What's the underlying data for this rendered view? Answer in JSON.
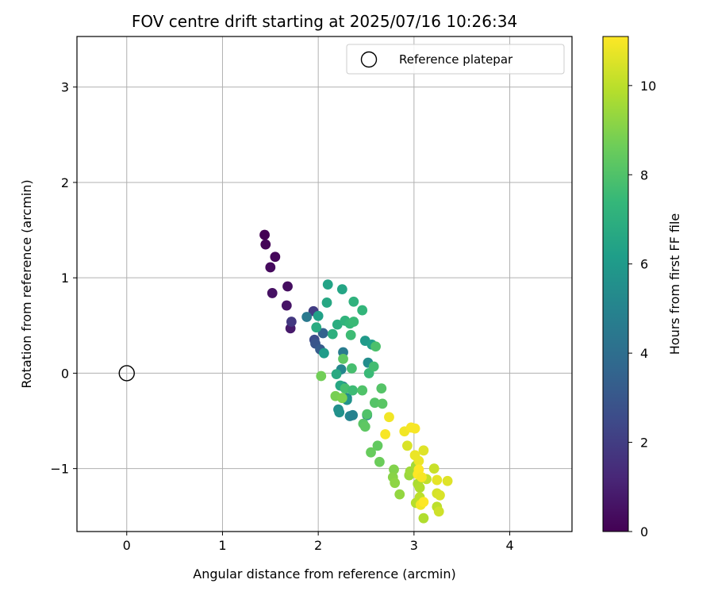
{
  "chart_data": {
    "type": "scatter",
    "title": "FOV centre drift starting at 2025/07/16 10:26:34",
    "xlabel": "Angular distance from reference (arcmin)",
    "ylabel": "Rotation from reference (arcmin)",
    "xlim": [
      -0.52,
      4.65
    ],
    "ylim": [
      -1.66,
      3.53
    ],
    "xticks": [
      0,
      1,
      2,
      3,
      4
    ],
    "yticks": [
      -1,
      0,
      1,
      2,
      3
    ],
    "xtick_labels": [
      "0",
      "1",
      "2",
      "3",
      "4"
    ],
    "ytick_labels": [
      "−1",
      "0",
      "1",
      "2",
      "3"
    ],
    "grid": true,
    "legend": {
      "placement": "top-right",
      "label": "Reference platepar"
    },
    "reference_point": {
      "x": 0,
      "y": 0
    },
    "colorbar": {
      "label": "Hours from first FF file",
      "range": [
        0,
        11.1
      ],
      "ticks": [
        0,
        2,
        4,
        6,
        8,
        10
      ],
      "tick_labels": [
        "0",
        "2",
        "4",
        "6",
        "8",
        "10"
      ],
      "colormap": "viridis"
    },
    "points": [
      {
        "x": 1.44,
        "y": 1.45,
        "h": 0.0
      },
      {
        "x": 1.45,
        "y": 1.35,
        "h": 0.1
      },
      {
        "x": 1.55,
        "y": 1.22,
        "h": 0.2
      },
      {
        "x": 1.5,
        "y": 1.11,
        "h": 0.3
      },
      {
        "x": 1.68,
        "y": 0.91,
        "h": 0.4
      },
      {
        "x": 1.52,
        "y": 0.84,
        "h": 0.5
      },
      {
        "x": 1.67,
        "y": 0.71,
        "h": 0.6
      },
      {
        "x": 1.71,
        "y": 0.47,
        "h": 0.8
      },
      {
        "x": 1.72,
        "y": 0.54,
        "h": 1.8
      },
      {
        "x": 1.95,
        "y": 0.65,
        "h": 2.0
      },
      {
        "x": 1.96,
        "y": 0.35,
        "h": 2.6
      },
      {
        "x": 1.97,
        "y": 0.31,
        "h": 2.9
      },
      {
        "x": 2.02,
        "y": 0.25,
        "h": 3.2
      },
      {
        "x": 2.05,
        "y": 0.42,
        "h": 3.5
      },
      {
        "x": 1.88,
        "y": 0.59,
        "h": 4.5
      },
      {
        "x": 2.26,
        "y": 0.22,
        "h": 4.6
      },
      {
        "x": 2.26,
        "y": -0.14,
        "h": 4.7
      },
      {
        "x": 2.33,
        "y": -0.45,
        "h": 5.0
      },
      {
        "x": 2.36,
        "y": -0.44,
        "h": 4.9
      },
      {
        "x": 2.24,
        "y": 0.04,
        "h": 5.1
      },
      {
        "x": 2.3,
        "y": -0.26,
        "h": 5.2
      },
      {
        "x": 2.51,
        "y": -0.44,
        "h": 5.0
      },
      {
        "x": 2.21,
        "y": -0.38,
        "h": 5.5
      },
      {
        "x": 2.22,
        "y": -0.41,
        "h": 5.6
      },
      {
        "x": 2.3,
        "y": -0.28,
        "h": 5.7
      },
      {
        "x": 2.52,
        "y": 0.11,
        "h": 5.4
      },
      {
        "x": 2.49,
        "y": 0.34,
        "h": 6.0
      },
      {
        "x": 2.56,
        "y": 0.3,
        "h": 6.2
      },
      {
        "x": 2.06,
        "y": 0.21,
        "h": 6.1
      },
      {
        "x": 2.1,
        "y": 0.93,
        "h": 6.4
      },
      {
        "x": 2.25,
        "y": 0.88,
        "h": 6.5
      },
      {
        "x": 2.09,
        "y": 0.74,
        "h": 6.6
      },
      {
        "x": 2.0,
        "y": 0.6,
        "h": 6.3
      },
      {
        "x": 1.98,
        "y": 0.48,
        "h": 6.8
      },
      {
        "x": 2.2,
        "y": 0.51,
        "h": 6.9
      },
      {
        "x": 2.19,
        "y": -0.01,
        "h": 6.7
      },
      {
        "x": 2.23,
        "y": -0.13,
        "h": 6.6
      },
      {
        "x": 2.15,
        "y": 0.41,
        "h": 7.0
      },
      {
        "x": 2.37,
        "y": 0.75,
        "h": 7.1
      },
      {
        "x": 2.46,
        "y": 0.66,
        "h": 7.3
      },
      {
        "x": 2.28,
        "y": 0.55,
        "h": 7.2
      },
      {
        "x": 2.33,
        "y": 0.52,
        "h": 7.4
      },
      {
        "x": 2.37,
        "y": 0.54,
        "h": 7.5
      },
      {
        "x": 2.34,
        "y": 0.4,
        "h": 7.6
      },
      {
        "x": 2.53,
        "y": 0.0,
        "h": 7.5
      },
      {
        "x": 2.58,
        "y": 0.07,
        "h": 7.7
      },
      {
        "x": 2.6,
        "y": 0.28,
        "h": 7.9
      },
      {
        "x": 2.35,
        "y": 0.05,
        "h": 7.8
      },
      {
        "x": 2.28,
        "y": -0.16,
        "h": 7.8
      },
      {
        "x": 2.36,
        "y": -0.18,
        "h": 7.6
      },
      {
        "x": 2.46,
        "y": -0.18,
        "h": 8.0
      },
      {
        "x": 2.59,
        "y": -0.31,
        "h": 8.1
      },
      {
        "x": 2.67,
        "y": -0.32,
        "h": 8.2
      },
      {
        "x": 2.66,
        "y": -0.16,
        "h": 8.1
      },
      {
        "x": 2.51,
        "y": -0.43,
        "h": 8.0
      },
      {
        "x": 2.47,
        "y": -0.53,
        "h": 8.2
      },
      {
        "x": 2.49,
        "y": -0.56,
        "h": 8.3
      },
      {
        "x": 2.62,
        "y": -0.76,
        "h": 8.4
      },
      {
        "x": 2.55,
        "y": -0.83,
        "h": 8.5
      },
      {
        "x": 2.64,
        "y": -0.93,
        "h": 8.6
      },
      {
        "x": 2.26,
        "y": 0.15,
        "h": 8.3
      },
      {
        "x": 2.03,
        "y": -0.03,
        "h": 8.7
      },
      {
        "x": 2.18,
        "y": -0.24,
        "h": 8.8
      },
      {
        "x": 2.25,
        "y": -0.26,
        "h": 8.9
      },
      {
        "x": 2.79,
        "y": -1.01,
        "h": 9.0
      },
      {
        "x": 2.78,
        "y": -1.09,
        "h": 9.1
      },
      {
        "x": 2.8,
        "y": -1.15,
        "h": 9.2
      },
      {
        "x": 2.85,
        "y": -1.27,
        "h": 9.3
      },
      {
        "x": 2.95,
        "y": -1.07,
        "h": 9.4
      },
      {
        "x": 2.96,
        "y": -1.03,
        "h": 9.5
      },
      {
        "x": 3.02,
        "y": -0.97,
        "h": 9.6
      },
      {
        "x": 3.04,
        "y": -1.16,
        "h": 9.7
      },
      {
        "x": 3.06,
        "y": -1.2,
        "h": 9.8
      },
      {
        "x": 3.02,
        "y": -1.36,
        "h": 9.9
      },
      {
        "x": 3.06,
        "y": -1.3,
        "h": 10.0
      },
      {
        "x": 3.1,
        "y": -1.52,
        "h": 9.8
      },
      {
        "x": 3.13,
        "y": -1.11,
        "h": 10.1
      },
      {
        "x": 3.21,
        "y": -1.0,
        "h": 10.2
      },
      {
        "x": 3.24,
        "y": -1.4,
        "h": 10.0
      },
      {
        "x": 3.26,
        "y": -1.45,
        "h": 10.3
      },
      {
        "x": 3.24,
        "y": -1.26,
        "h": 10.4
      },
      {
        "x": 3.27,
        "y": -1.28,
        "h": 10.5
      },
      {
        "x": 3.35,
        "y": -1.13,
        "h": 10.6
      },
      {
        "x": 3.24,
        "y": -1.12,
        "h": 10.7
      },
      {
        "x": 3.1,
        "y": -0.81,
        "h": 10.6
      },
      {
        "x": 3.05,
        "y": -0.92,
        "h": 10.8
      },
      {
        "x": 3.01,
        "y": -0.86,
        "h": 10.8
      },
      {
        "x": 2.93,
        "y": -0.76,
        "h": 10.5
      },
      {
        "x": 2.9,
        "y": -0.61,
        "h": 10.9
      },
      {
        "x": 2.97,
        "y": -0.57,
        "h": 11.0
      },
      {
        "x": 3.01,
        "y": -0.58,
        "h": 11.0
      },
      {
        "x": 2.74,
        "y": -0.46,
        "h": 10.9
      },
      {
        "x": 2.7,
        "y": -0.64,
        "h": 11.0
      },
      {
        "x": 3.05,
        "y": -1.01,
        "h": 11.1
      },
      {
        "x": 3.04,
        "y": -1.06,
        "h": 11.1
      },
      {
        "x": 3.08,
        "y": -1.09,
        "h": 11.0
      },
      {
        "x": 3.07,
        "y": -1.38,
        "h": 10.9
      },
      {
        "x": 3.1,
        "y": -1.35,
        "h": 11.1
      }
    ]
  }
}
